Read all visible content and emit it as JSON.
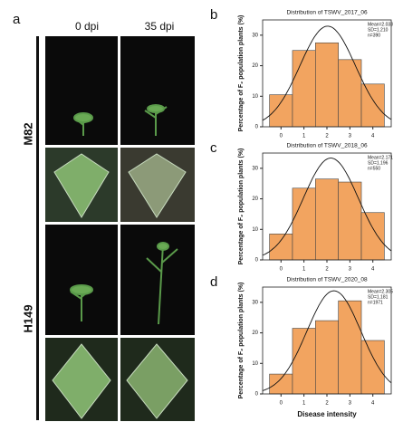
{
  "panel_a": {
    "letter": "a",
    "columns": [
      "0 dpi",
      "35 dpi"
    ],
    "rows": [
      "M82",
      "H149"
    ]
  },
  "chart_data": [
    {
      "type": "histogram",
      "letter": "b",
      "title": "Distribution of TSWV_2017_06",
      "y_label": "Percentage of F₂ population plants (%)",
      "bins": [
        -0.5,
        0.5,
        1.5,
        2.5,
        3.5,
        4.5
      ],
      "values": [
        10.5,
        25,
        27.5,
        22,
        14
      ],
      "color": "#f2a460",
      "fit": {
        "mean": 2.033,
        "sd": 1.21
      },
      "annotations": [
        "Mean=2.033",
        "SD=1.210",
        "n=390"
      ],
      "xlim": [
        -0.8,
        4.8
      ],
      "xticks": [
        0,
        1,
        2,
        3,
        4
      ],
      "ylim": [
        0,
        35
      ],
      "yticks": [
        0,
        10,
        20,
        30
      ]
    },
    {
      "type": "histogram",
      "letter": "c",
      "title": "Distribution of TSWV_2018_06",
      "y_label": "Percentage of F₂ population plants (%)",
      "bins": [
        -0.5,
        0.5,
        1.5,
        2.5,
        3.5,
        4.5
      ],
      "values": [
        8.5,
        23.5,
        26.5,
        25.5,
        15.5
      ],
      "color": "#f2a460",
      "fit": {
        "mean": 2.171,
        "sd": 1.196
      },
      "annotations": [
        "Mean=2.171",
        "SD=1.196",
        "n=550"
      ],
      "xlim": [
        -0.8,
        4.8
      ],
      "xticks": [
        0,
        1,
        2,
        3,
        4
      ],
      "ylim": [
        0,
        35
      ],
      "yticks": [
        0,
        10,
        20,
        30
      ]
    },
    {
      "type": "histogram",
      "letter": "d",
      "title": "Distribution of TSWV_2020_08",
      "y_label": "Percentage of F₂ population plants (%)",
      "x_label": "Disease intensity",
      "bins": [
        -0.5,
        0.5,
        1.5,
        2.5,
        3.5,
        4.5
      ],
      "values": [
        6.5,
        21.5,
        24,
        30.5,
        17.5
      ],
      "color": "#f2a460",
      "fit": {
        "mean": 2.305,
        "sd": 1.181
      },
      "annotations": [
        "Mean=2.305",
        "SD=1.181",
        "n=1971"
      ],
      "xlim": [
        -0.8,
        4.8
      ],
      "xticks": [
        0,
        1,
        2,
        3,
        4
      ],
      "ylim": [
        0,
        35
      ],
      "yticks": [
        0,
        10,
        20,
        30
      ]
    }
  ]
}
